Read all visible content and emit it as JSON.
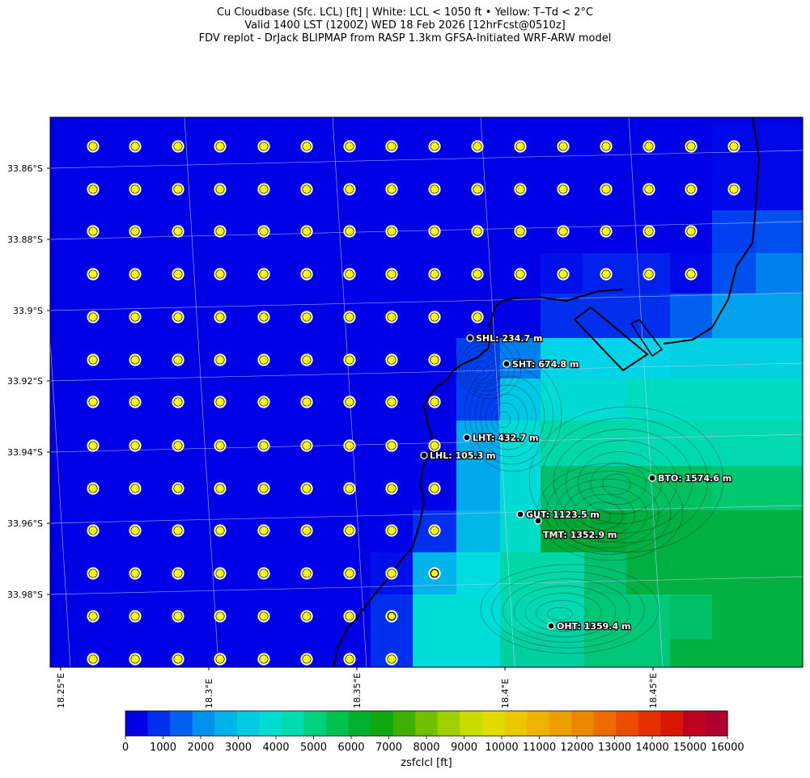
{
  "title_lines": [
    "Cu Cloudbase (Sfc. LCL) [ft]  |  White: LCL < 1050 ft • Yellow: T–Td < 2°C",
    "Valid 1400 LST (1200Z) WED 18 Feb 2026 [12hrFcst@0510z]",
    "FDV replot - DrJack BLIPMAP from RASP 1.3km GFSA-Initiated WRF-ARW model"
  ],
  "lat_ticks": [
    "33.86°S",
    "33.88°S",
    "33.9°S",
    "33.92°S",
    "33.94°S",
    "33.96°S",
    "33.98°S"
  ],
  "lon_ticks": [
    "18.25°E",
    "18.3°E",
    "18.35°E",
    "18.4°E",
    "18.45°E"
  ],
  "stations": [
    {
      "label": "SHL: 234.7 m"
    },
    {
      "label": "SHT: 674.8 m"
    },
    {
      "label": "LHT: 432.7 m"
    },
    {
      "label": "LHL: 105.3 m"
    },
    {
      "label": "BTO: 1574.6 m"
    },
    {
      "label": "GUT: 1123.5 m"
    },
    {
      "label": "TMT: 1352.9 m"
    },
    {
      "label": "OHT: 1359.4 m"
    }
  ],
  "colorbar": {
    "label": "zsfclcl [ft]",
    "ticks": [
      "0",
      "1000",
      "2000",
      "3000",
      "4000",
      "5000",
      "6000",
      "7000",
      "8000",
      "9000",
      "10000",
      "11000",
      "12000",
      "13000",
      "14000",
      "15000",
      "16000"
    ],
    "colors": [
      "#0000e6",
      "#0030ee",
      "#0060f0",
      "#0090ee",
      "#00b4ea",
      "#00cce0",
      "#00dcd0",
      "#00dcb0",
      "#00d080",
      "#00c050",
      "#00b030",
      "#10a810",
      "#40b000",
      "#70c000",
      "#a0d000",
      "#c8dc00",
      "#e0dc00",
      "#e8c800",
      "#ecb400",
      "#eca000",
      "#ec8800",
      "#ec6c00",
      "#ec4c00",
      "#e43000",
      "#d81800",
      "#c00020",
      "#b00030"
    ]
  }
}
